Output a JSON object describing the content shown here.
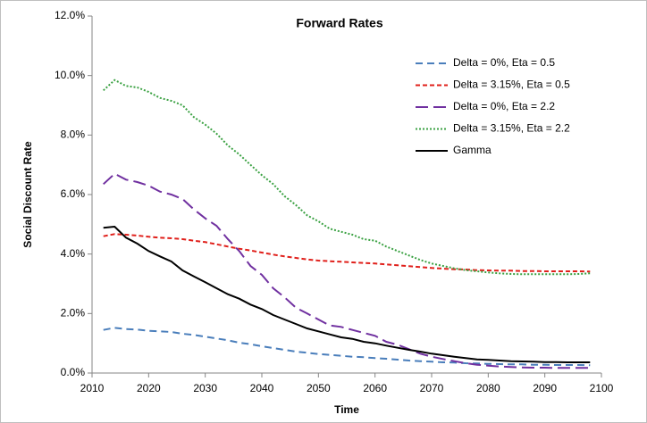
{
  "chart_data": {
    "type": "line",
    "title": "Forward Rates",
    "x_label": "Time",
    "y_label": "Social Discount Rate",
    "x": [
      2012,
      2014,
      2016,
      2018,
      2020,
      2022,
      2024,
      2026,
      2028,
      2030,
      2032,
      2034,
      2036,
      2038,
      2040,
      2042,
      2044,
      2046,
      2048,
      2050,
      2052,
      2054,
      2056,
      2058,
      2060,
      2062,
      2064,
      2066,
      2068,
      2070,
      2072,
      2074,
      2076,
      2078,
      2080,
      2082,
      2084,
      2086,
      2088,
      2090,
      2092,
      2094,
      2096,
      2098
    ],
    "xlim": [
      2010,
      2100
    ],
    "xticks": [
      2010,
      2020,
      2030,
      2040,
      2050,
      2060,
      2070,
      2080,
      2090,
      2100
    ],
    "ylim": [
      0,
      12
    ],
    "yticks": [
      {
        "value": 0,
        "label": "0.0%"
      },
      {
        "value": 2,
        "label": "2.0%"
      },
      {
        "value": 4,
        "label": "4.0%"
      },
      {
        "value": 6,
        "label": "6.0%"
      },
      {
        "value": 8,
        "label": "8.0%"
      },
      {
        "value": 10,
        "label": "10.0%"
      },
      {
        "value": 12,
        "label": "12.0%"
      }
    ],
    "grid": false,
    "legend": "upper right",
    "series": [
      {
        "name": "Delta = 0%, Eta = 0.5",
        "color": "#4a7ebb",
        "dash": "8 5",
        "values": [
          1.45,
          1.52,
          1.48,
          1.46,
          1.42,
          1.4,
          1.38,
          1.32,
          1.28,
          1.22,
          1.16,
          1.1,
          1.02,
          0.97,
          0.9,
          0.84,
          0.78,
          0.72,
          0.68,
          0.64,
          0.61,
          0.58,
          0.55,
          0.53,
          0.5,
          0.48,
          0.45,
          0.42,
          0.4,
          0.38,
          0.36,
          0.35,
          0.33,
          0.32,
          0.31,
          0.3,
          0.29,
          0.29,
          0.28,
          0.28,
          0.27,
          0.27,
          0.27,
          0.26
        ]
      },
      {
        "name": "Delta = 3.15%, Eta = 0.5",
        "color": "#e0201b",
        "dash": "5 3",
        "values": [
          4.6,
          4.67,
          4.65,
          4.62,
          4.58,
          4.55,
          4.53,
          4.5,
          4.45,
          4.4,
          4.33,
          4.25,
          4.18,
          4.12,
          4.05,
          3.98,
          3.92,
          3.87,
          3.82,
          3.78,
          3.76,
          3.74,
          3.72,
          3.7,
          3.68,
          3.65,
          3.62,
          3.59,
          3.56,
          3.53,
          3.51,
          3.49,
          3.48,
          3.46,
          3.45,
          3.44,
          3.44,
          3.43,
          3.43,
          3.42,
          3.42,
          3.42,
          3.42,
          3.41
        ]
      },
      {
        "name": "Delta = 0%, Eta = 2.2",
        "color": "#7030a0",
        "dash": "14 6",
        "values": [
          6.35,
          6.7,
          6.5,
          6.42,
          6.3,
          6.1,
          6.0,
          5.85,
          5.5,
          5.2,
          4.95,
          4.5,
          4.1,
          3.6,
          3.3,
          2.85,
          2.55,
          2.2,
          2.0,
          1.8,
          1.6,
          1.55,
          1.45,
          1.35,
          1.25,
          1.05,
          0.95,
          0.8,
          0.65,
          0.55,
          0.47,
          0.4,
          0.33,
          0.28,
          0.25,
          0.22,
          0.2,
          0.19,
          0.18,
          0.18,
          0.17,
          0.17,
          0.17,
          0.17
        ]
      },
      {
        "name": "Delta = 3.15%, Eta = 2.2",
        "color": "#3aa142",
        "dash": "2 2",
        "values": [
          9.5,
          9.85,
          9.65,
          9.6,
          9.45,
          9.25,
          9.15,
          9.0,
          8.6,
          8.35,
          8.05,
          7.65,
          7.35,
          7.0,
          6.65,
          6.35,
          5.95,
          5.65,
          5.3,
          5.1,
          4.85,
          4.75,
          4.65,
          4.5,
          4.45,
          4.25,
          4.1,
          3.95,
          3.8,
          3.68,
          3.6,
          3.52,
          3.46,
          3.42,
          3.38,
          3.35,
          3.33,
          3.32,
          3.32,
          3.32,
          3.32,
          3.32,
          3.33,
          3.35
        ]
      },
      {
        "name": "Gamma",
        "color": "#000000",
        "dash": "none",
        "values": [
          4.88,
          4.92,
          4.55,
          4.35,
          4.1,
          3.92,
          3.75,
          3.45,
          3.25,
          3.05,
          2.85,
          2.65,
          2.5,
          2.3,
          2.15,
          1.95,
          1.8,
          1.65,
          1.5,
          1.4,
          1.3,
          1.2,
          1.15,
          1.05,
          1.0,
          0.92,
          0.85,
          0.78,
          0.72,
          0.65,
          0.6,
          0.55,
          0.5,
          0.46,
          0.44,
          0.42,
          0.4,
          0.39,
          0.38,
          0.37,
          0.37,
          0.36,
          0.36,
          0.36
        ]
      }
    ]
  }
}
